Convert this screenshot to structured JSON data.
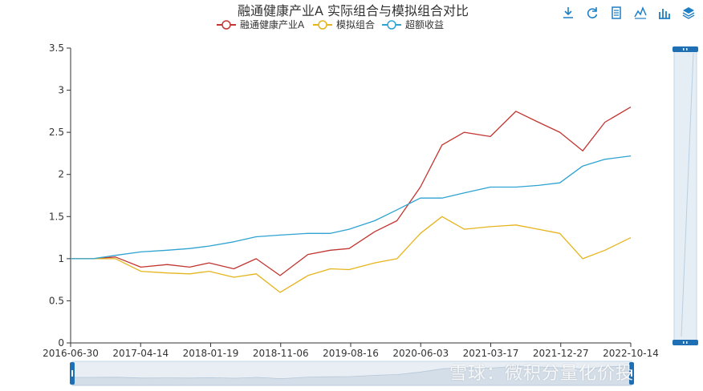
{
  "toolbar": {
    "icons": [
      "download-icon",
      "refresh-icon",
      "data-view-icon",
      "line-chart-icon",
      "bar-chart-icon",
      "stack-icon"
    ],
    "color": "#1f7fc4"
  },
  "watermark": "雪球：微积分量化价投",
  "chart_data": {
    "type": "line",
    "title": "融通健康产业A 实际组合与模拟组合对比",
    "legend_position": "top",
    "grid": false,
    "xlabel": "",
    "ylabel": "",
    "x_ticks": [
      "2016-06-30",
      "2017-04-14",
      "2018-01-19",
      "2018-11-06",
      "2019-08-16",
      "2020-06-03",
      "2021-03-17",
      "2021-12-27",
      "2022-10-14"
    ],
    "y_ticks": [
      "0",
      "0.5",
      "1",
      "1.5",
      "2",
      "2.5",
      "3",
      "3.5"
    ],
    "ylim": [
      0,
      3.5
    ],
    "xlim": [
      "2016-06-30",
      "2022-10-14"
    ],
    "x": [
      "2016-06-30",
      "2016-09-30",
      "2016-12-31",
      "2017-04-14",
      "2017-07-31",
      "2017-10-31",
      "2018-01-19",
      "2018-04-30",
      "2018-07-31",
      "2018-11-06",
      "2019-02-28",
      "2019-05-31",
      "2019-08-16",
      "2019-11-29",
      "2020-02-28",
      "2020-06-03",
      "2020-08-31",
      "2020-11-30",
      "2021-03-17",
      "2021-06-30",
      "2021-09-30",
      "2021-12-27",
      "2022-03-31",
      "2022-06-30",
      "2022-10-14"
    ],
    "series": [
      {
        "name": "融通健康产业A",
        "color": "#c23531",
        "values": [
          1.0,
          1.0,
          1.02,
          0.9,
          0.93,
          0.9,
          0.95,
          0.88,
          1.0,
          0.8,
          1.05,
          1.1,
          1.12,
          1.32,
          1.45,
          1.85,
          2.35,
          2.5,
          2.45,
          2.75,
          2.62,
          2.5,
          2.28,
          2.62,
          2.8
        ]
      },
      {
        "name": "模拟组合",
        "color": "#e6b41c",
        "values": [
          1.0,
          1.0,
          1.0,
          0.85,
          0.83,
          0.82,
          0.85,
          0.78,
          0.82,
          0.6,
          0.8,
          0.88,
          0.87,
          0.95,
          1.0,
          1.3,
          1.5,
          1.35,
          1.38,
          1.4,
          1.35,
          1.3,
          1.0,
          1.1,
          1.25
        ]
      },
      {
        "name": "超额收益",
        "color": "#2ea3d1",
        "values": [
          1.0,
          1.0,
          1.04,
          1.08,
          1.1,
          1.12,
          1.15,
          1.2,
          1.26,
          1.28,
          1.3,
          1.3,
          1.35,
          1.45,
          1.58,
          1.72,
          1.72,
          1.78,
          1.85,
          1.85,
          1.87,
          1.9,
          2.1,
          2.18,
          2.22
        ]
      }
    ]
  }
}
